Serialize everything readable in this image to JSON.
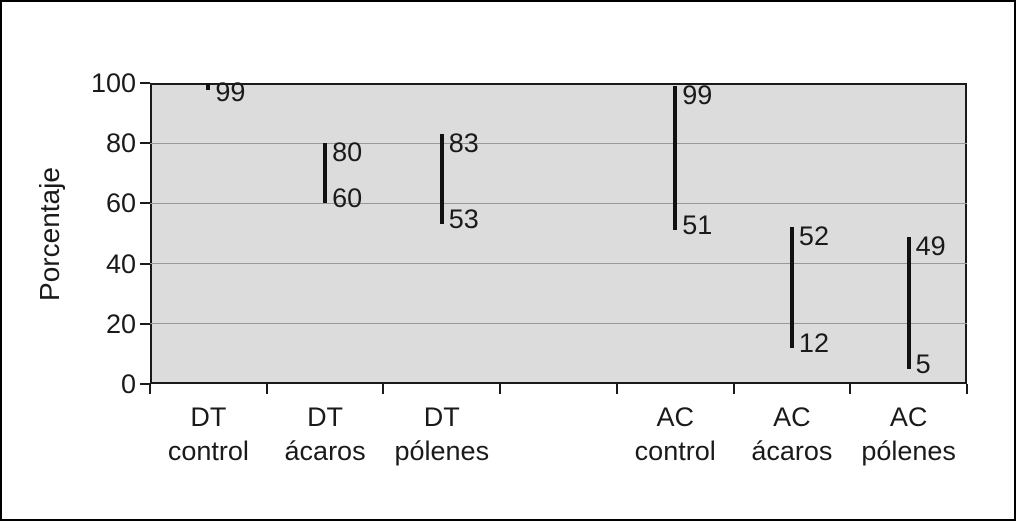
{
  "chart_data": {
    "type": "range",
    "title": "",
    "ylabel": "Porcentaje",
    "xlabel": "",
    "ylim": [
      0,
      100
    ],
    "yticks": [
      0,
      20,
      40,
      60,
      80,
      100
    ],
    "grid": true,
    "legend": false,
    "slot_count": 7,
    "categories": [
      {
        "slot": 0,
        "line1": "DT",
        "line2": "control"
      },
      {
        "slot": 1,
        "line1": "DT",
        "line2": "ácaros"
      },
      {
        "slot": 2,
        "line1": "DT",
        "line2": "pólenes"
      },
      {
        "slot": 4,
        "line1": "AC",
        "line2": "control"
      },
      {
        "slot": 5,
        "line1": "AC",
        "line2": "ácaros"
      },
      {
        "slot": 6,
        "line1": "AC",
        "line2": "pólenes"
      }
    ],
    "series": [
      {
        "name": "DT control",
        "slot": 0,
        "high": 99,
        "low": null,
        "high_label": "99",
        "low_label": null
      },
      {
        "name": "DT ácaros",
        "slot": 1,
        "high": 80,
        "low": 60,
        "high_label": "80",
        "low_label": "60"
      },
      {
        "name": "DT pólenes",
        "slot": 2,
        "high": 83,
        "low": 53,
        "high_label": "83",
        "low_label": "53"
      },
      {
        "name": "AC control",
        "slot": 4,
        "high": 99,
        "low": 51,
        "high_label": "99",
        "low_label": "51"
      },
      {
        "name": "AC ácaros",
        "slot": 5,
        "high": 52,
        "low": 12,
        "high_label": "52",
        "low_label": "12"
      },
      {
        "name": "AC pólenes",
        "slot": 6,
        "high": 49,
        "low": 5,
        "high_label": "49",
        "low_label": "5"
      }
    ],
    "colors": {
      "plot_bg": "#dcdcdc",
      "gridline": "#999999",
      "axis": "#1a1a1a",
      "range_line": "#111111",
      "border": "#000000",
      "text": "#1a1a1a"
    }
  }
}
